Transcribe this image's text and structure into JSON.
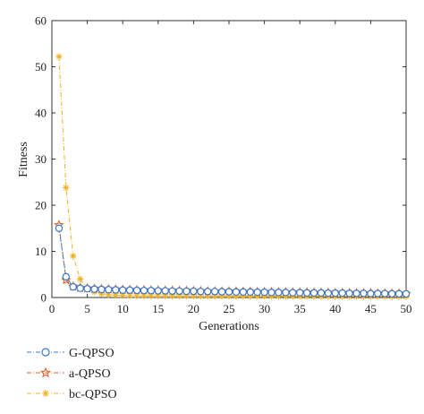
{
  "chart_data": {
    "type": "line",
    "title": "",
    "xlabel": "Generations",
    "ylabel": "Fitness",
    "xlim": [
      0,
      50
    ],
    "ylim": [
      0,
      60
    ],
    "x_ticks": [
      0,
      5,
      10,
      15,
      20,
      25,
      30,
      35,
      40,
      45,
      50
    ],
    "y_ticks": [
      0,
      10,
      20,
      30,
      40,
      50,
      60
    ],
    "grid": false,
    "legend_position": "bottom-left, below plot",
    "x": [
      1,
      2,
      3,
      4,
      5,
      6,
      7,
      8,
      9,
      10,
      11,
      12,
      13,
      14,
      15,
      16,
      17,
      18,
      19,
      20,
      21,
      22,
      23,
      24,
      25,
      26,
      27,
      28,
      29,
      30,
      31,
      32,
      33,
      34,
      35,
      36,
      37,
      38,
      39,
      40,
      41,
      42,
      43,
      44,
      45,
      46,
      47,
      48,
      49,
      50
    ],
    "series": [
      {
        "name": "G-QPSO",
        "color": "#3a78c9",
        "marker": "circle",
        "values": [
          15.0,
          4.5,
          2.3,
          2.0,
          1.9,
          1.8,
          1.75,
          1.7,
          1.65,
          1.6,
          1.6,
          1.55,
          1.5,
          1.5,
          1.45,
          1.45,
          1.4,
          1.4,
          1.35,
          1.35,
          1.3,
          1.3,
          1.3,
          1.25,
          1.25,
          1.2,
          1.2,
          1.2,
          1.15,
          1.15,
          1.1,
          1.1,
          1.1,
          1.05,
          1.05,
          1.0,
          1.0,
          1.0,
          0.95,
          0.95,
          0.95,
          0.9,
          0.9,
          0.9,
          0.85,
          0.85,
          0.85,
          0.8,
          0.8,
          0.8
        ]
      },
      {
        "name": "a-QPSO",
        "color": "#d9652b",
        "marker": "star",
        "values": [
          15.7,
          3.8,
          2.4,
          2.1,
          2.0,
          1.9,
          1.85,
          1.8,
          1.75,
          1.7,
          1.65,
          1.6,
          1.6,
          1.55,
          1.55,
          1.5,
          1.5,
          1.45,
          1.45,
          1.4,
          1.4,
          1.35,
          1.35,
          1.3,
          1.3,
          1.3,
          1.25,
          1.25,
          1.2,
          1.2,
          1.2,
          1.15,
          1.15,
          1.1,
          1.1,
          1.1,
          1.05,
          1.05,
          1.05,
          1.0,
          1.0,
          1.0,
          0.95,
          0.95,
          0.95,
          0.9,
          0.9,
          0.9,
          0.9,
          0.85
        ]
      },
      {
        "name": "bc-QPSO",
        "color": "#f0b323",
        "marker": "asterisk",
        "values": [
          52.2,
          23.8,
          9.0,
          4.0,
          1.8,
          1.2,
          0.8,
          0.6,
          0.5,
          0.45,
          0.4,
          0.38,
          0.36,
          0.35,
          0.34,
          0.33,
          0.32,
          0.31,
          0.3,
          0.3,
          0.29,
          0.29,
          0.28,
          0.28,
          0.27,
          0.27,
          0.26,
          0.26,
          0.25,
          0.25,
          0.25,
          0.24,
          0.24,
          0.24,
          0.23,
          0.23,
          0.23,
          0.22,
          0.22,
          0.22,
          0.21,
          0.21,
          0.21,
          0.2,
          0.2,
          0.2,
          0.2,
          0.19,
          0.19,
          0.19
        ]
      }
    ]
  }
}
